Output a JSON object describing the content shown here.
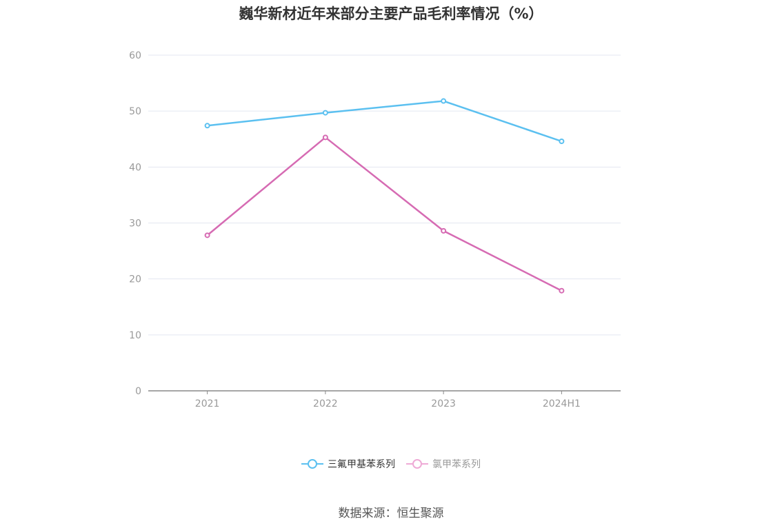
{
  "chart_data": {
    "type": "line",
    "title": "巍华新材近年来部分主要产品毛利率情况（%）",
    "categories": [
      "2021",
      "2022",
      "2023",
      "2024H1"
    ],
    "ylim": [
      0,
      60
    ],
    "yticks": [
      0,
      10,
      20,
      30,
      40,
      50,
      60
    ],
    "grid": true,
    "legend_position": "bottom",
    "series": [
      {
        "name": "三氟甲基苯系列",
        "values": [
          47.4,
          49.7,
          51.8,
          44.6
        ],
        "color": "#5bc0f0"
      },
      {
        "name": "氯甲苯系列",
        "values": [
          27.8,
          45.3,
          28.6,
          17.9
        ],
        "color": "#d66bb3"
      }
    ]
  },
  "legend_colors": {
    "active_text": "#333333",
    "inactive_text": "#999999",
    "inactive_swatch": "#eeaad6"
  },
  "source_note": "数据来源：恒生聚源"
}
